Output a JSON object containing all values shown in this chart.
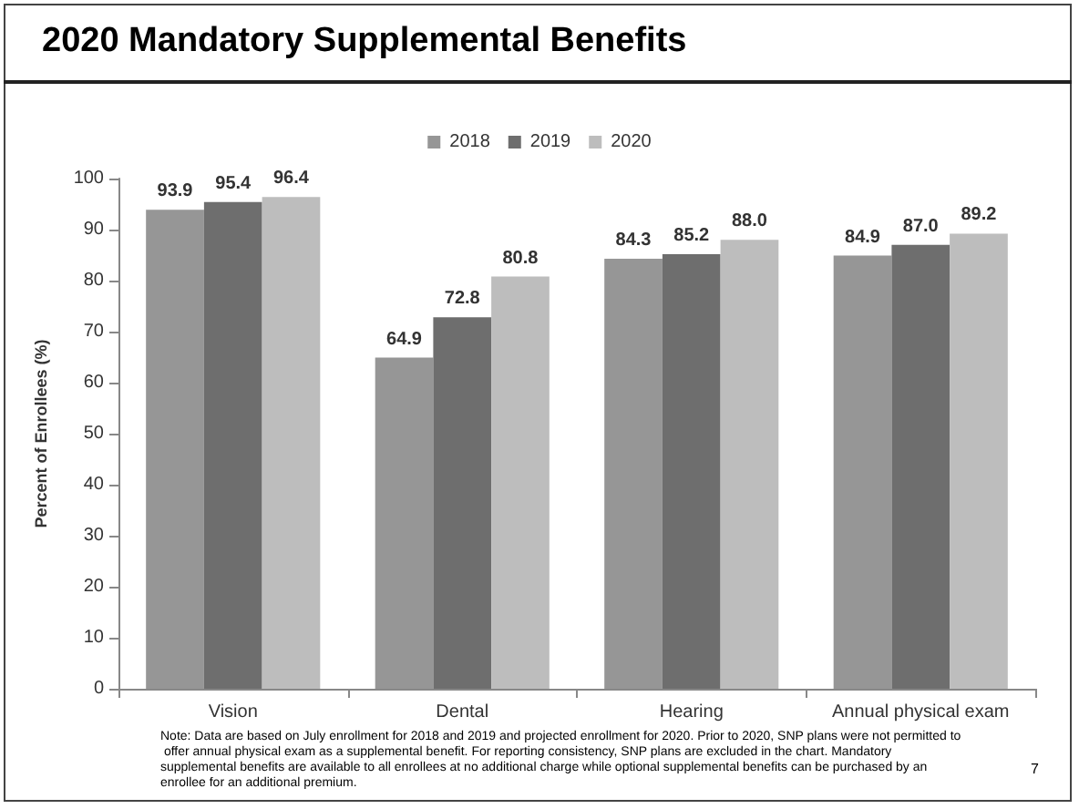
{
  "chart_data": {
    "type": "bar",
    "title": "2020 Mandatory Supplemental Benefits",
    "ylabel": "Percent of Enrollees (%)",
    "categories": [
      "Vision",
      "Dental",
      "Hearing",
      "Annual physical exam"
    ],
    "series": [
      {
        "name": "2018",
        "color": "#969696",
        "values": [
          93.9,
          64.9,
          84.3,
          84.9
        ]
      },
      {
        "name": "2019",
        "color": "#6e6e6e",
        "values": [
          95.4,
          72.8,
          85.2,
          87.0
        ]
      },
      {
        "name": "2020",
        "color": "#bdbdbd",
        "values": [
          96.4,
          80.8,
          88.0,
          89.2
        ]
      }
    ],
    "value_labels": [
      [
        "93.9",
        "64.9",
        "84.3",
        "84.9"
      ],
      [
        "95.4",
        "72.8",
        "85.2",
        "87.0"
      ],
      [
        "96.4",
        "80.8",
        "88.0",
        "89.2"
      ]
    ],
    "ylim": [
      0,
      100
    ],
    "yticks": [
      0,
      10,
      20,
      30,
      40,
      50,
      60,
      70,
      80,
      90,
      100
    ],
    "grid": false,
    "legend": "top",
    "annotations": [
      "Note: Data are based on July enrollment for 2018 and 2019 and projected enrollment for 2020. Prior to 2020, SNP plans were not permitted to offer annual physical exam as a supplemental benefit. For reporting consistency, SNP plans are excluded in the chart. Mandatory supplemental benefits are available to all enrollees at no additional charge while optional supplemental benefits can be purchased by an enrollee for an additional premium.",
      "7"
    ]
  }
}
